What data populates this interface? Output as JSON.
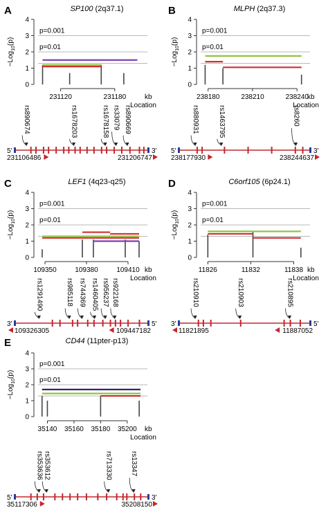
{
  "chart_data": [
    {
      "type": "line",
      "panel": "A",
      "gene": "SP100",
      "locus": "(2q37.1)",
      "ylabel": "−Log10(p)",
      "xlabel_unit": "kb",
      "xlabel": "Location",
      "ylim": [
        0,
        4
      ],
      "yticks": [
        0,
        1,
        2,
        3,
        4
      ],
      "xticks": [
        231120,
        231180
      ],
      "xlim": [
        231095,
        231210
      ],
      "thresholds": [
        {
          "label": "p=0.001",
          "value": 3
        },
        {
          "label": "p=0.01",
          "value": 2
        },
        {
          "label": "",
          "value": 1.3
        }
      ],
      "segments": [
        {
          "color": "#7b3fb8",
          "x1": 231100,
          "x2": 231205,
          "y": 1.5
        },
        {
          "color": "#8dc63f",
          "x1": 231100,
          "x2": 231165,
          "y": 1.2
        },
        {
          "color": "#d12f2f",
          "x1": 231100,
          "x2": 231165,
          "y": 1.1
        }
      ],
      "sticks": [
        {
          "x": 231100,
          "y": 1.2
        },
        {
          "x": 231130,
          "y": 0.7
        },
        {
          "x": 231165,
          "y": 1.2
        },
        {
          "x": 231190,
          "y": 0.7
        }
      ],
      "snps": [
        "rs890674",
        "rs1678203",
        "rs1678158",
        "rs33079",
        "rs890669"
      ],
      "strand_left": "5'",
      "strand_right": "3'",
      "start_coord": "231106486",
      "end_coord": "231206747"
    },
    {
      "type": "line",
      "panel": "B",
      "gene": "MLPH",
      "locus": "(2q37.3)",
      "ylabel": "−Log10(p)",
      "xlabel_unit": "kb",
      "xlabel": "Location",
      "ylim": [
        0,
        4
      ],
      "yticks": [
        0,
        1,
        2,
        3,
        4
      ],
      "xticks": [
        238180,
        238210,
        238240
      ],
      "xlim": [
        238175,
        238245
      ],
      "thresholds": [
        {
          "label": "p=0.001",
          "value": 3
        },
        {
          "label": "p=0.01",
          "value": 2
        },
        {
          "label": "",
          "value": 1.3
        }
      ],
      "segments": [
        {
          "color": "#8dc63f",
          "x1": 238178,
          "x2": 238243,
          "y": 1.75
        },
        {
          "color": "#d12f2f",
          "x1": 238178,
          "x2": 238190,
          "y": 1.4
        },
        {
          "color": "#d12f2f",
          "x1": 238190,
          "x2": 238243,
          "y": 1.05
        }
      ],
      "sticks": [
        {
          "x": 238178,
          "y": 1.2
        },
        {
          "x": 238190,
          "y": 1.0
        },
        {
          "x": 238243,
          "y": 0.6
        }
      ],
      "snps": [
        "rs880931",
        "rs1463795",
        "rs8260"
      ],
      "strand_left": "5'",
      "strand_right": "3'",
      "start_coord": "238177930",
      "end_coord": "238244637"
    },
    {
      "type": "line",
      "panel": "C",
      "gene": "LEF1",
      "locus": "(4q23-q25)",
      "ylabel": "−Log10(p)",
      "xlabel_unit": "kb",
      "xlabel": "Location",
      "ylim": [
        0,
        4
      ],
      "yticks": [
        0,
        1,
        2,
        3,
        4
      ],
      "xticks": [
        109350,
        109380,
        109410
      ],
      "xlim": [
        109345,
        109420
      ],
      "thresholds": [
        {
          "label": "p=0.001",
          "value": 3
        },
        {
          "label": "p=0.01",
          "value": 2
        },
        {
          "label": "",
          "value": 1.3
        }
      ],
      "segments": [
        {
          "color": "#d12f2f",
          "x1": 109377,
          "x2": 109397,
          "y": 1.55
        },
        {
          "color": "#d12f2f",
          "x1": 109397,
          "x2": 109418,
          "y": 1.45
        },
        {
          "color": "#8dc63f",
          "x1": 109348,
          "x2": 109418,
          "y": 1.3
        },
        {
          "color": "#d12f2f",
          "x1": 109348,
          "x2": 109418,
          "y": 1.2
        },
        {
          "color": "#7b3fb8",
          "x1": 109385,
          "x2": 109418,
          "y": 1.0
        }
      ],
      "sticks": [
        {
          "x": 109348,
          "y": 0.5
        },
        {
          "x": 109377,
          "y": 1.1
        },
        {
          "x": 109385,
          "y": 1.1
        },
        {
          "x": 109408,
          "y": 1.1
        },
        {
          "x": 109418,
          "y": 1.0
        }
      ],
      "snps": [
        "rs1291490",
        "rs985118",
        "rs744369",
        "rs1460405",
        "rs956237",
        "rs922168"
      ],
      "strand_left": "3'",
      "strand_right": "5'",
      "start_coord": "109326305",
      "end_coord": "109447182"
    },
    {
      "type": "line",
      "panel": "D",
      "gene": "C6orf105",
      "locus": "(6p24.1)",
      "ylabel": "−Log10(p)",
      "xlabel_unit": "kb",
      "xlabel": "Location",
      "ylim": [
        0,
        4
      ],
      "yticks": [
        0,
        1,
        2,
        3,
        4
      ],
      "xticks": [
        11826,
        11832,
        11838
      ],
      "xlim": [
        11825,
        11839.5
      ],
      "thresholds": [
        {
          "label": "p=0.001",
          "value": 3
        },
        {
          "label": "p=0.01",
          "value": 2
        },
        {
          "label": "",
          "value": 1.3
        }
      ],
      "segments": [
        {
          "color": "#8dc63f",
          "x1": 11826,
          "x2": 11839,
          "y": 1.6
        },
        {
          "color": "#d12f2f",
          "x1": 11826,
          "x2": 11832.3,
          "y": 1.45
        },
        {
          "color": "#d12f2f",
          "x1": 11832.3,
          "x2": 11839,
          "y": 1.2
        }
      ],
      "sticks": [
        {
          "x": 11826,
          "y": 1.4
        },
        {
          "x": 11832.3,
          "y": 1.6
        },
        {
          "x": 11839,
          "y": 0.6
        }
      ],
      "snps": [
        "rs210910",
        "rs210903",
        "rs210895"
      ],
      "strand_left": "3'",
      "strand_right": "5'",
      "start_coord": "11821895",
      "end_coord": "11887052"
    },
    {
      "type": "line",
      "panel": "E",
      "gene": "CD44",
      "locus": "(11pter-p13)",
      "ylabel": "−Log10(p)",
      "xlabel_unit": "kb",
      "xlabel": "Location",
      "ylim": [
        0,
        4
      ],
      "yticks": [
        0,
        1,
        2,
        3,
        4
      ],
      "xticks": [
        35140,
        35160,
        35180,
        35200
      ],
      "xlim": [
        35133,
        35211
      ],
      "thresholds": [
        {
          "label": "p=0.001",
          "value": 3
        },
        {
          "label": "p=0.01",
          "value": 2
        },
        {
          "label": "",
          "value": 1.3
        }
      ],
      "segments": [
        {
          "color": "#3b1f6e",
          "x1": 35136,
          "x2": 35210,
          "y": 1.7
        },
        {
          "color": "#8dc63f",
          "x1": 35136,
          "x2": 35210,
          "y": 1.45
        },
        {
          "color": "#d12f2f",
          "x1": 35180,
          "x2": 35210,
          "y": 1.3
        }
      ],
      "sticks": [
        {
          "x": 35136,
          "y": 1.3
        },
        {
          "x": 35140,
          "y": 1.0
        },
        {
          "x": 35180,
          "y": 1.3
        },
        {
          "x": 35209,
          "y": 1.0
        }
      ],
      "snps": [
        "rs353636",
        "rs353612",
        "rs713330",
        "rs13347"
      ],
      "strand_left": "5'",
      "strand_right": "3'",
      "start_coord": "35117306",
      "end_coord": "35208150"
    }
  ],
  "colors": {
    "gene_line": "#c0282d",
    "utr_marker": "#2a3a9a",
    "threshold_line": "#b8b8b8",
    "axis": "#333333",
    "stick": "#444444"
  }
}
